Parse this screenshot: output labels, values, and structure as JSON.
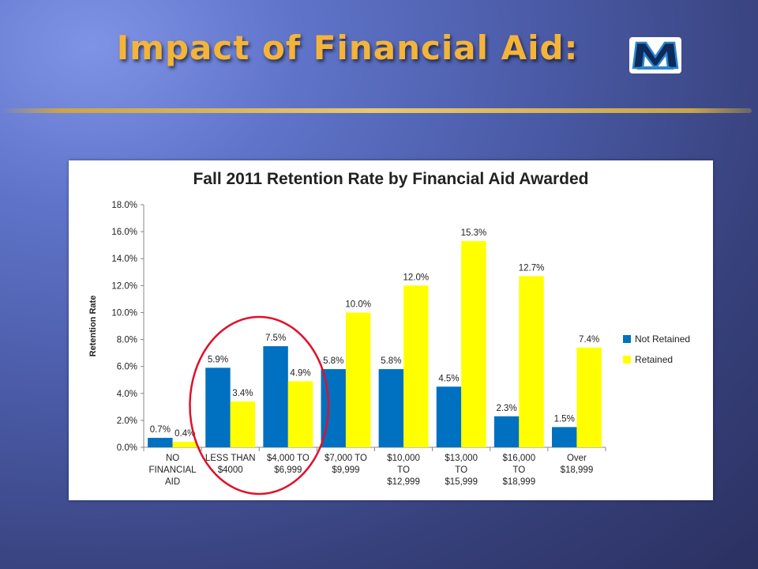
{
  "slide": {
    "title": "Impact of Financial Aid:",
    "logo_text": "M"
  },
  "colors": {
    "not_retained": "#0070c0",
    "retained": "#ffff00",
    "title": "#f4b43a",
    "highlight": "#e0102a"
  },
  "chart_data": {
    "type": "bar",
    "title": "Fall 2011 Retention Rate by Financial Aid Awarded",
    "xlabel": "",
    "ylabel": "Retention Rate",
    "ylim": [
      0,
      18
    ],
    "yticks": [
      "0.0%",
      "2.0%",
      "4.0%",
      "6.0%",
      "8.0%",
      "10.0%",
      "12.0%",
      "14.0%",
      "16.0%",
      "18.0%"
    ],
    "categories": [
      [
        "NO",
        "FINANCIAL",
        "AID"
      ],
      [
        "LESS THAN",
        "$4000"
      ],
      [
        "$4,000 TO",
        "$6,999"
      ],
      [
        "$7,000 TO",
        "$9,999"
      ],
      [
        "$10,000",
        "TO",
        "$12,999"
      ],
      [
        "$13,000",
        "TO",
        "$15,999"
      ],
      [
        "$16,000",
        "TO",
        "$18,999"
      ],
      [
        "Over",
        "$18,999"
      ]
    ],
    "series": [
      {
        "name": "Not Retained",
        "values": [
          0.7,
          5.9,
          7.5,
          5.8,
          5.8,
          4.5,
          2.3,
          1.5
        ],
        "labels": [
          "0.7%",
          "5.9%",
          "7.5%",
          "5.8%",
          "5.8%",
          "4.5%",
          "2.3%",
          "1.5%"
        ]
      },
      {
        "name": "Retained",
        "values": [
          0.4,
          3.4,
          4.9,
          10.0,
          12.0,
          15.3,
          12.7,
          7.4
        ],
        "labels": [
          "0.4%",
          "3.4%",
          "4.9%",
          "10.0%",
          "12.0%",
          "15.3%",
          "12.7%",
          "7.4%"
        ]
      }
    ],
    "grid": false,
    "legend_position": "right",
    "annotation": "red ellipse highlighting LESS THAN $4000 and $4,000 TO $6,999 groups"
  }
}
